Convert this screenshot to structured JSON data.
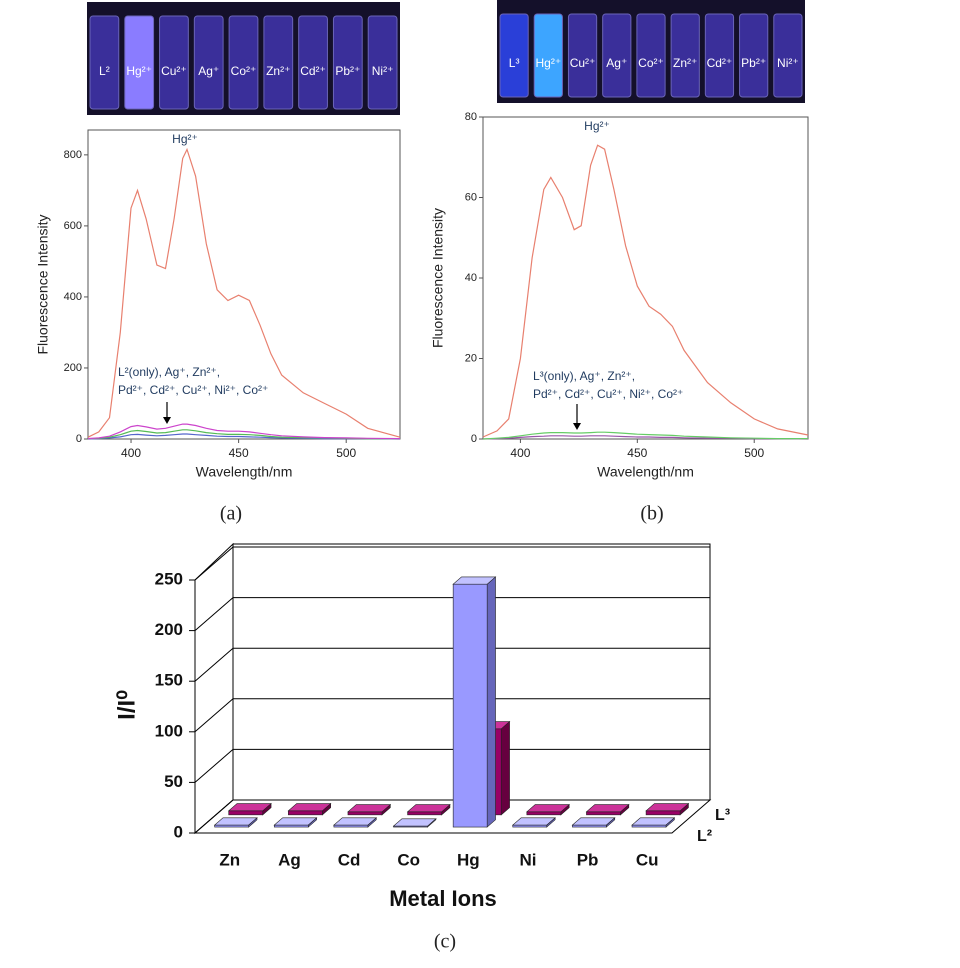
{
  "chart_data": [
    {
      "type": "line",
      "photo_labels": [
        "L²",
        "Hg²⁺",
        "Cu²⁺",
        "Ag⁺",
        "Co²⁺",
        "Zn²⁺",
        "Cd²⁺",
        "Pb²⁺",
        "Ni²⁺"
      ],
      "x_label": "Wavelength/nm",
      "y_label": "Fluorescence Intensity",
      "annotations": [
        "Hg²⁺",
        "L²(only), Ag⁺, Zn²⁺,",
        "Pd²⁺, Cd²⁺, Cu²⁺, Ni²⁺, Co²⁺"
      ],
      "caption": "(a)",
      "xlim": [
        380,
        525
      ],
      "xticks": [
        400,
        450,
        500
      ],
      "ylim": [
        0,
        870
      ],
      "yticks": [
        0,
        200,
        400,
        600,
        800
      ],
      "x": [
        380,
        385,
        390,
        395,
        400,
        403,
        407,
        412,
        416,
        420,
        424,
        426,
        430,
        435,
        440,
        445,
        450,
        455,
        460,
        465,
        470,
        480,
        490,
        500,
        510,
        525
      ],
      "series": [
        {
          "color": "#e8806f",
          "values": [
            5,
            20,
            60,
            300,
            650,
            700,
            620,
            490,
            480,
            620,
            790,
            815,
            740,
            550,
            420,
            390,
            405,
            390,
            320,
            240,
            180,
            130,
            100,
            70,
            30,
            5
          ]
        },
        {
          "color": "#cc44cc",
          "values": [
            1,
            3,
            8,
            20,
            35,
            38,
            34,
            28,
            30,
            36,
            42,
            42,
            38,
            30,
            24,
            22,
            22,
            20,
            16,
            12,
            9,
            6,
            4,
            3,
            2,
            1
          ]
        },
        {
          "color": "#55bb55",
          "values": [
            1,
            2,
            5,
            12,
            22,
            24,
            21,
            17,
            18,
            22,
            26,
            26,
            23,
            18,
            15,
            13,
            13,
            12,
            10,
            7,
            5,
            4,
            3,
            2,
            1,
            1
          ]
        },
        {
          "color": "#5566cc",
          "values": [
            0,
            1,
            3,
            6,
            12,
            13,
            11,
            9,
            10,
            12,
            14,
            14,
            12,
            10,
            8,
            7,
            7,
            6,
            5,
            4,
            3,
            2,
            1,
            1,
            1,
            0
          ]
        }
      ]
    },
    {
      "type": "line",
      "photo_labels": [
        "L³",
        "Hg²⁺",
        "Cu²⁺",
        "Ag⁺",
        "Co²⁺",
        "Zn²⁺",
        "Cd²⁺",
        "Pb²⁺",
        "Ni²⁺"
      ],
      "x_label": "Wavelength/nm",
      "y_label": "Fluorescence Intensity",
      "annotations": [
        "Hg²⁺",
        "L³(only), Ag⁺, Zn²⁺,",
        "Pd²⁺, Cd²⁺, Cu²⁺, Ni²⁺, Co²⁺"
      ],
      "caption": "(b)",
      "xlim": [
        384,
        523
      ],
      "xticks": [
        400,
        450,
        500
      ],
      "ylim": [
        0,
        80
      ],
      "yticks": [
        0,
        20,
        40,
        60,
        80
      ],
      "x": [
        384,
        390,
        395,
        400,
        405,
        410,
        413,
        418,
        423,
        426,
        430,
        433,
        436,
        440,
        445,
        450,
        455,
        460,
        465,
        470,
        480,
        490,
        500,
        510,
        523
      ],
      "series": [
        {
          "color": "#e8806f",
          "values": [
            0.5,
            2,
            5,
            20,
            45,
            62,
            65,
            60,
            52,
            53,
            68,
            73,
            72,
            62,
            48,
            38,
            33,
            31,
            28,
            22,
            14,
            9,
            5,
            2.5,
            1
          ]
        },
        {
          "color": "#66cc66",
          "values": [
            0,
            0.2,
            0.4,
            0.8,
            1.2,
            1.5,
            1.6,
            1.6,
            1.5,
            1.5,
            1.6,
            1.7,
            1.7,
            1.6,
            1.4,
            1.2,
            1.1,
            1,
            0.9,
            0.7,
            0.5,
            0.3,
            0.2,
            0.1,
            0.1
          ]
        },
        {
          "color": "#9955aa",
          "values": [
            0,
            0.1,
            0.2,
            0.4,
            0.6,
            0.7,
            0.8,
            0.8,
            0.7,
            0.7,
            0.8,
            0.8,
            0.8,
            0.7,
            0.6,
            0.5,
            0.5,
            0.4,
            0.4,
            0.3,
            0.2,
            0.2,
            0.1,
            0.1,
            0
          ]
        }
      ]
    },
    {
      "type": "bar3d",
      "categories": [
        "Zn",
        "Ag",
        "Cd",
        "Co",
        "Hg",
        "Ni",
        "Pb",
        "Cu"
      ],
      "series": [
        {
          "name": "L²",
          "color": "#9999ff",
          "values": [
            2,
            2,
            2,
            1,
            240,
            2,
            2,
            2
          ]
        },
        {
          "name": "L³",
          "color": "#990066",
          "values": [
            4,
            4,
            3,
            3,
            85,
            3,
            3,
            4
          ]
        }
      ],
      "ylim": [
        0,
        250
      ],
      "yticks": [
        0,
        50,
        100,
        150,
        200,
        250
      ],
      "y_label": "I/I⁰",
      "x_label": "Metal Ions",
      "caption": "(c)"
    }
  ]
}
